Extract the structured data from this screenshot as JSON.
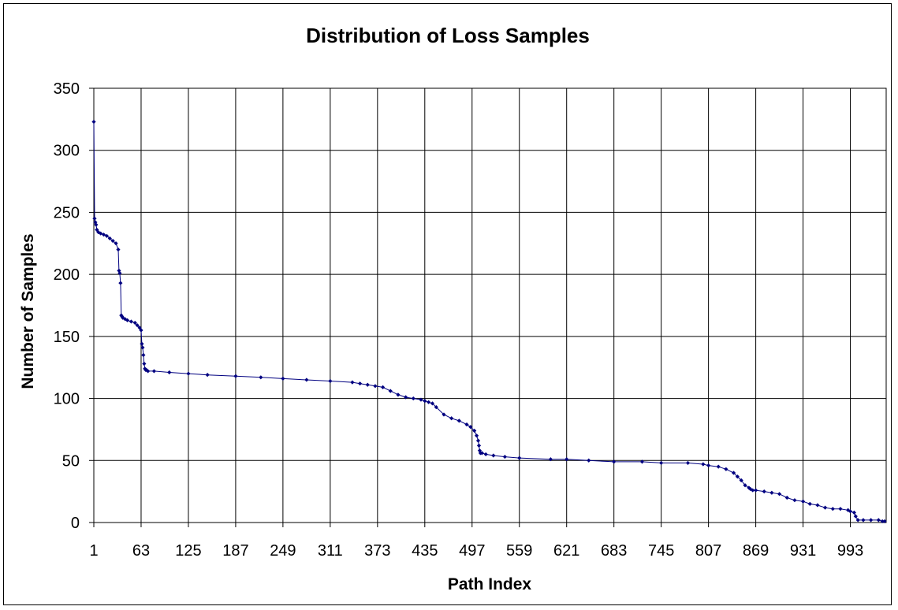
{
  "chart_data": {
    "type": "line",
    "title": "Distribution of Loss Samples",
    "xlabel": "Path Index",
    "ylabel": "Number of Samples",
    "ylim": [
      0,
      350
    ],
    "xlim": [
      1,
      1040
    ],
    "grid": true,
    "legend": "none",
    "y_ticks": [
      0,
      50,
      100,
      150,
      200,
      250,
      300,
      350
    ],
    "x_ticks": [
      1,
      63,
      125,
      187,
      249,
      311,
      373,
      435,
      497,
      559,
      621,
      683,
      745,
      807,
      869,
      931,
      993
    ],
    "series_color": "#000080",
    "series": [
      {
        "x": [
          1,
          2,
          3,
          4,
          5,
          7,
          10,
          14,
          18,
          22,
          26,
          30,
          33,
          34,
          35,
          36,
          37,
          38,
          39,
          42,
          45,
          50,
          55,
          58,
          61,
          63,
          64,
          65,
          66,
          67,
          68,
          69,
          70,
          72,
          80,
          100,
          125,
          150,
          187,
          220,
          249,
          280,
          311,
          340,
          350,
          360,
          370,
          380,
          390,
          400,
          410,
          420,
          430,
          435,
          440,
          445,
          450,
          460,
          470,
          480,
          490,
          495,
          500,
          503,
          505,
          506,
          507,
          508,
          510,
          515,
          525,
          540,
          559,
          600,
          621,
          650,
          683,
          720,
          745,
          780,
          800,
          807,
          820,
          830,
          840,
          845,
          850,
          855,
          860,
          862,
          865,
          869,
          880,
          890,
          900,
          910,
          920,
          931,
          940,
          950,
          960,
          970,
          980,
          990,
          993,
          998,
          1000,
          1003,
          1010,
          1020,
          1030,
          1035,
          1038
        ],
        "y": [
          323,
          245,
          242,
          240,
          236,
          234,
          233,
          232,
          231,
          229,
          227,
          225,
          220,
          203,
          201,
          193,
          167,
          166,
          165,
          164,
          163,
          162,
          161,
          159,
          157,
          155,
          144,
          141,
          135,
          128,
          124,
          123,
          123,
          122,
          122,
          121,
          120,
          119,
          118,
          117,
          116,
          115,
          114,
          113,
          112,
          111,
          110,
          109,
          106,
          103,
          101,
          100,
          99,
          98,
          97,
          96,
          93,
          87,
          84,
          82,
          79,
          77,
          74,
          70,
          66,
          62,
          58,
          56,
          56,
          55,
          54,
          53,
          52,
          51,
          51,
          50,
          49,
          49,
          48,
          48,
          47,
          46,
          45,
          43,
          40,
          37,
          34,
          30,
          28,
          27,
          26,
          26,
          25,
          24,
          23,
          20,
          18,
          17,
          15,
          14,
          12,
          11,
          11,
          10,
          9,
          8,
          5,
          2,
          2,
          2,
          2,
          1,
          1
        ]
      }
    ]
  }
}
